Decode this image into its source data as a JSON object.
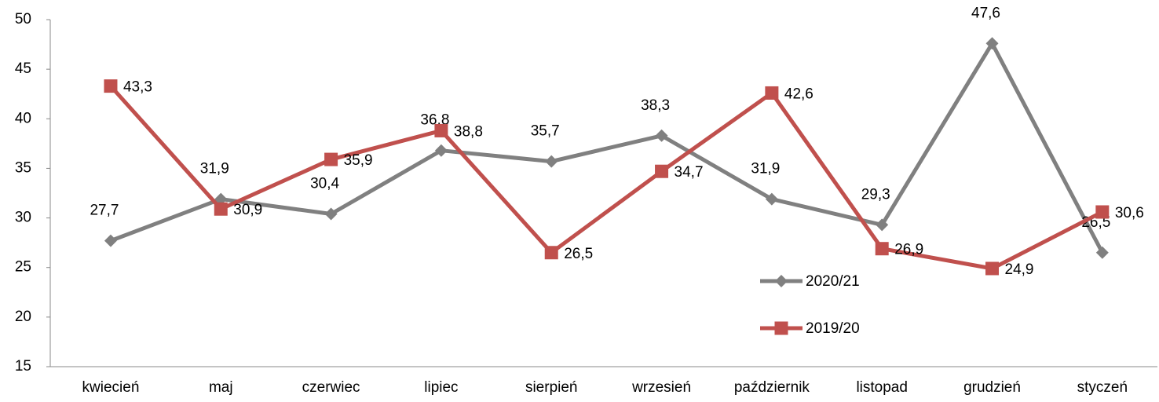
{
  "chart_data": {
    "type": "line",
    "categories": [
      "kwiecień",
      "maj",
      "czerwiec",
      "lipiec",
      "sierpień",
      "wrzesień",
      "październik",
      "listopad",
      "grudzień",
      "styczeń"
    ],
    "series": [
      {
        "name": "2020/21",
        "color": "#808080",
        "marker": "diamond",
        "values": [
          27.7,
          31.9,
          30.4,
          36.8,
          35.7,
          38.3,
          31.9,
          29.3,
          47.6,
          26.5
        ],
        "value_labels": [
          "27,7",
          "31,9",
          "30,4",
          "36,8",
          "35,7",
          "38,3",
          "31,9",
          "29,3",
          "47,6",
          "26,5"
        ]
      },
      {
        "name": "2019/20",
        "color": "#c0504d",
        "marker": "square",
        "values": [
          43.3,
          30.9,
          35.9,
          38.8,
          26.5,
          34.7,
          42.6,
          26.9,
          24.9,
          30.6
        ],
        "value_labels": [
          "43,3",
          "30,9",
          "35,9",
          "38,8",
          "26,5",
          "34,7",
          "42,6",
          "26,9",
          "24,9",
          "30,6"
        ]
      }
    ],
    "ylim": [
      15,
      50
    ],
    "yticks": [
      15,
      20,
      25,
      30,
      35,
      40,
      45,
      50
    ],
    "grid": false
  }
}
